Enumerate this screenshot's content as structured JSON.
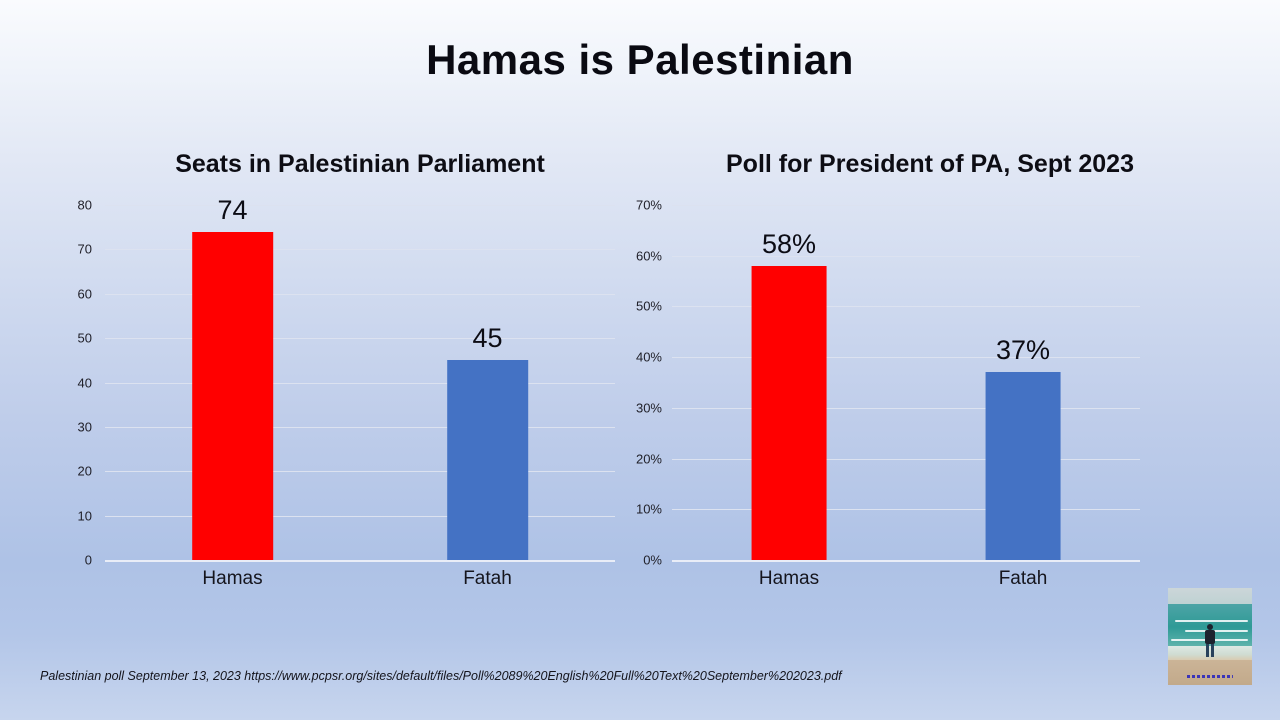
{
  "slide": {
    "title": "Hamas is Palestinian"
  },
  "chart_data": [
    {
      "type": "bar",
      "title": "Seats in Palestinian Parliament",
      "categories": [
        "Hamas",
        "Fatah"
      ],
      "values": [
        74,
        45
      ],
      "value_labels": [
        "74",
        "45"
      ],
      "series_colors": [
        "#ff0000",
        "#4472c4"
      ],
      "ylim": [
        0,
        80
      ],
      "ytick_labels": [
        "80",
        "70",
        "60",
        "50",
        "40",
        "30",
        "20",
        "10",
        "0"
      ],
      "grid": true,
      "legend": "none"
    },
    {
      "type": "bar",
      "title": "Poll for President of PA, Sept 2023",
      "categories": [
        "Hamas",
        "Fatah"
      ],
      "values": [
        58,
        37
      ],
      "value_labels": [
        "58%",
        "37%"
      ],
      "series_colors": [
        "#ff0000",
        "#4472c4"
      ],
      "ylim": [
        0,
        70
      ],
      "ytick_labels": [
        "70%",
        "60%",
        "50%",
        "40%",
        "30%",
        "20%",
        "10%",
        "0%"
      ],
      "grid": true,
      "legend": "none"
    }
  ],
  "footer": {
    "source": "Palestinian poll September 13, 2023 https://www.pcpsr.org/sites/default/files/Poll%2089%20English%20Full%20Text%20September%202023.pdf"
  },
  "photo": {
    "description": "person standing on beach facing the sea"
  },
  "colors": {
    "bar_red": "#ff0000",
    "bar_blue": "#4472c4",
    "gridline": "#dce2f0",
    "background_top": "#fafbfe",
    "background_bottom": "#c7d5ee"
  }
}
